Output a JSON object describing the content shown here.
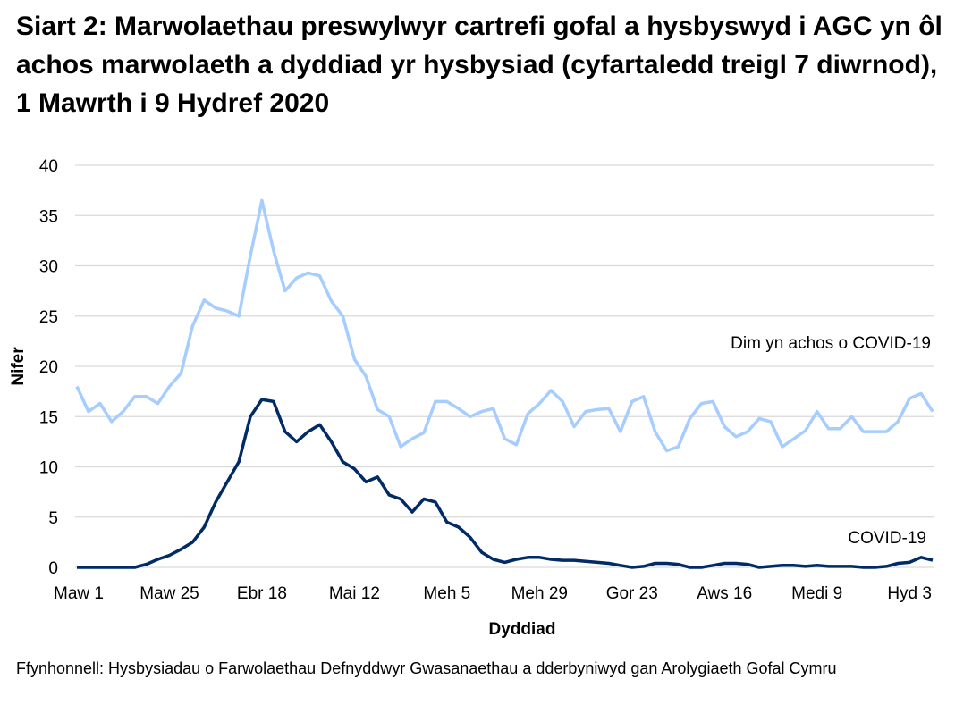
{
  "title": "Siart 2: Marwolaethau preswylwyr cartrefi gofal a hysbyswyd i AGC yn ôl achos marwolaeth a dyddiad yr hysbysiad (cyfartaledd treigl 7 diwrnod), 1 Mawrth i 9 Hydref 2020",
  "source": "Ffynhonnell: Hysbysiadau o Farwolaethau Defnyddwyr Gwasanaethau a dderbyniwyd gan Arolygiaeth Gofal Cymru",
  "chart_data": {
    "type": "line",
    "title": "Siart 2: Marwolaethau preswylwyr cartrefi gofal a hysbyswyd i AGC yn ôl achos marwolaeth a dyddiad yr hysbysiad (cyfartaledd treigl 7 diwrnod), 1 Mawrth i 9 Hydref 2020",
    "xlabel": "Dyddiad",
    "ylabel": "Nifer",
    "ylim": [
      0,
      40
    ],
    "yticks": [
      "0",
      "5",
      "10",
      "15",
      "20",
      "25",
      "30",
      "35",
      "40"
    ],
    "xlim": [
      "2020-03-01",
      "2020-10-09"
    ],
    "xticks": [
      {
        "label": "Maw 1",
        "date": "2020-03-01"
      },
      {
        "label": "Maw 25",
        "date": "2020-03-25"
      },
      {
        "label": "Ebr 18",
        "date": "2020-04-18"
      },
      {
        "label": "Mai 12",
        "date": "2020-05-12"
      },
      {
        "label": "Meh 5",
        "date": "2020-06-05"
      },
      {
        "label": "Meh 29",
        "date": "2020-06-29"
      },
      {
        "label": "Gor 23",
        "date": "2020-07-23"
      },
      {
        "label": "Aws 16",
        "date": "2020-08-16"
      },
      {
        "label": "Medi 9",
        "date": "2020-09-09"
      },
      {
        "label": "Hyd 3",
        "date": "2020-10-03"
      }
    ],
    "grid": true,
    "legend": "inline labels at right",
    "x": [
      "2020-03-01",
      "2020-03-04",
      "2020-03-07",
      "2020-03-10",
      "2020-03-13",
      "2020-03-16",
      "2020-03-19",
      "2020-03-22",
      "2020-03-25",
      "2020-03-28",
      "2020-03-31",
      "2020-04-03",
      "2020-04-06",
      "2020-04-09",
      "2020-04-12",
      "2020-04-15",
      "2020-04-18",
      "2020-04-21",
      "2020-04-24",
      "2020-04-27",
      "2020-04-30",
      "2020-05-03",
      "2020-05-06",
      "2020-05-09",
      "2020-05-12",
      "2020-05-15",
      "2020-05-18",
      "2020-05-21",
      "2020-05-24",
      "2020-05-27",
      "2020-05-30",
      "2020-06-02",
      "2020-06-05",
      "2020-06-08",
      "2020-06-11",
      "2020-06-14",
      "2020-06-17",
      "2020-06-20",
      "2020-06-23",
      "2020-06-26",
      "2020-06-29",
      "2020-07-02",
      "2020-07-05",
      "2020-07-08",
      "2020-07-11",
      "2020-07-14",
      "2020-07-17",
      "2020-07-20",
      "2020-07-23",
      "2020-07-26",
      "2020-07-29",
      "2020-08-01",
      "2020-08-04",
      "2020-08-07",
      "2020-08-10",
      "2020-08-13",
      "2020-08-16",
      "2020-08-19",
      "2020-08-22",
      "2020-08-25",
      "2020-08-28",
      "2020-08-31",
      "2020-09-03",
      "2020-09-06",
      "2020-09-09",
      "2020-09-12",
      "2020-09-15",
      "2020-09-18",
      "2020-09-21",
      "2020-09-24",
      "2020-09-27",
      "2020-09-30",
      "2020-10-03",
      "2020-10-06",
      "2020-10-09"
    ],
    "series": [
      {
        "name": "Dim yn achos o COVID-19",
        "color": "#a6cdff",
        "values": [
          18,
          15.5,
          16.3,
          14.5,
          15.5,
          17,
          17,
          16.3,
          18,
          19.3,
          24,
          26.6,
          25.8,
          25.5,
          25,
          31,
          36.5,
          31.5,
          27.5,
          28.8,
          29.3,
          29,
          26.5,
          25,
          20.7,
          19,
          15.7,
          15,
          12,
          12.8,
          13.4,
          16.5,
          16.5,
          15.8,
          15,
          15.5,
          15.8,
          12.8,
          12.2,
          15.3,
          16.3,
          17.6,
          16.5,
          14,
          15.5,
          15.7,
          15.8,
          13.5,
          16.5,
          17,
          13.5,
          11.6,
          12,
          14.8,
          16.3,
          16.5,
          14,
          13,
          13.5,
          14.8,
          14.5,
          12,
          12.8,
          13.6,
          15.5,
          13.8,
          13.8,
          15,
          13.5,
          13.5,
          13.5,
          14.5,
          16.8,
          17.3,
          15.5
        ]
      },
      {
        "name": "COVID-19",
        "color": "#002b66",
        "values": [
          0,
          0,
          0,
          0,
          0,
          0,
          0.3,
          0.8,
          1.2,
          1.8,
          2.5,
          4,
          6.5,
          8.5,
          10.5,
          15,
          16.7,
          16.5,
          13.5,
          12.5,
          13.5,
          14.2,
          12.5,
          10.5,
          9.8,
          8.5,
          9,
          7.2,
          6.8,
          5.5,
          6.8,
          6.5,
          4.5,
          4,
          3,
          1.5,
          0.8,
          0.5,
          0.8,
          1,
          1,
          0.8,
          0.7,
          0.7,
          0.6,
          0.5,
          0.4,
          0.2,
          0,
          0.1,
          0.4,
          0.4,
          0.3,
          0,
          0,
          0.2,
          0.4,
          0.4,
          0.3,
          0,
          0.1,
          0.2,
          0.2,
          0.1,
          0.2,
          0.1,
          0.1,
          0.1,
          0,
          0,
          0.1,
          0.4,
          0.5,
          1,
          0.7
        ]
      }
    ]
  }
}
